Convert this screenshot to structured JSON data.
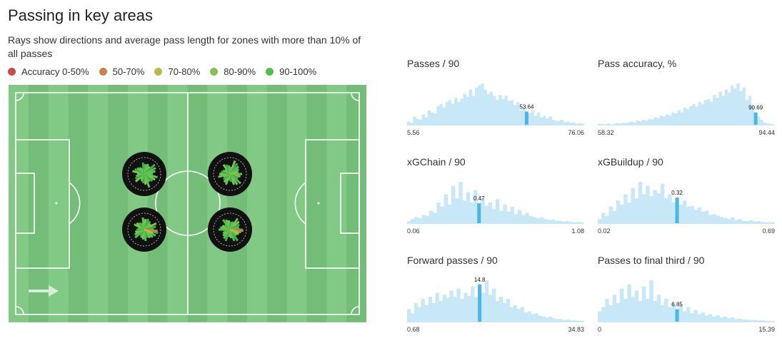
{
  "header": {
    "title": "Passing in key areas",
    "subtitle": "Rays show directions and average pass length for zones with more than 10% of all passes"
  },
  "legend": [
    {
      "label": "Accuracy 0-50%",
      "color": "#c94b4b"
    },
    {
      "label": "50-70%",
      "color": "#c9834b"
    },
    {
      "label": "70-80%",
      "color": "#bdb84a"
    },
    {
      "label": "80-90%",
      "color": "#86bf4f"
    },
    {
      "label": "90-100%",
      "color": "#4cbf4c"
    }
  ],
  "pitch": {
    "grass_light": "#82c986",
    "grass_dark": "#74bd78",
    "line_color": "#ffffff",
    "arrow_color": "#d7eedb",
    "zone_color": "#111111",
    "zone_count": 4
  },
  "chart_data": [
    {
      "type": "bar",
      "title": "Passes / 90",
      "min_label": "5.56",
      "max_label": "76.06",
      "highlight_label": "53.64",
      "highlight_fraction": 0.68,
      "values": [
        0.08,
        0.05,
        0.2,
        0.15,
        0.12,
        0.25,
        0.18,
        0.35,
        0.3,
        0.28,
        0.45,
        0.5,
        0.42,
        0.55,
        0.6,
        0.5,
        0.65,
        0.55,
        0.62,
        0.75,
        0.68,
        0.85,
        0.7,
        0.9,
        0.95,
        1.0,
        0.85,
        0.75,
        0.8,
        0.7,
        0.6,
        0.72,
        0.62,
        0.7,
        0.58,
        0.6,
        0.48,
        0.55,
        0.35,
        0.42,
        0.32,
        0.28,
        0.35,
        0.22,
        0.3,
        0.18,
        0.22,
        0.15,
        0.2,
        0.12,
        0.1,
        0.1,
        0.12,
        0.06,
        0.08,
        0.05,
        0.06,
        0.03,
        0.04,
        0.03
      ]
    },
    {
      "type": "bar",
      "title": "Pass accuracy, %",
      "min_label": "58.32",
      "max_label": "94.44",
      "highlight_label": "90.69",
      "highlight_fraction": 0.9,
      "values": [
        0.02,
        0.02,
        0.0,
        0.03,
        0.0,
        0.02,
        0.04,
        0.03,
        0.05,
        0.04,
        0.06,
        0.08,
        0.05,
        0.1,
        0.08,
        0.12,
        0.1,
        0.14,
        0.13,
        0.18,
        0.16,
        0.22,
        0.2,
        0.25,
        0.22,
        0.3,
        0.28,
        0.35,
        0.3,
        0.42,
        0.38,
        0.45,
        0.5,
        0.44,
        0.55,
        0.5,
        0.6,
        0.62,
        0.56,
        0.72,
        0.65,
        0.8,
        0.7,
        0.85,
        0.78,
        0.95,
        0.88,
        1.0,
        0.82,
        0.9,
        0.6,
        0.7,
        0.45,
        0.3,
        0.2,
        0.12,
        0.06,
        0.03,
        0.02,
        0.01
      ]
    },
    {
      "type": "bar",
      "title": "xGChain / 90",
      "min_label": "0.06",
      "max_label": "1.08",
      "highlight_label": "0.47",
      "highlight_fraction": 0.4,
      "values": [
        0.05,
        0.1,
        0.15,
        0.12,
        0.2,
        0.18,
        0.3,
        0.25,
        0.5,
        0.4,
        0.7,
        0.45,
        0.9,
        0.6,
        1.0,
        0.55,
        0.75,
        0.5,
        0.8,
        0.48,
        0.6,
        0.42,
        0.5,
        0.35,
        0.58,
        0.3,
        0.45,
        0.28,
        0.4,
        0.22,
        0.32,
        0.2,
        0.25,
        0.18,
        0.15,
        0.12,
        0.14,
        0.1,
        0.08,
        0.09,
        0.06,
        0.05,
        0.04,
        0.05,
        0.03,
        0.02,
        0.03,
        0.02
      ]
    },
    {
      "type": "bar",
      "title": "xGBuildup / 90",
      "min_label": "0.02",
      "max_label": "0.69",
      "highlight_label": "0.32",
      "highlight_fraction": 0.45,
      "values": [
        0.1,
        0.25,
        0.18,
        0.4,
        0.3,
        0.55,
        0.45,
        0.7,
        0.5,
        0.85,
        0.6,
        1.0,
        0.7,
        0.9,
        0.65,
        0.8,
        0.72,
        0.95,
        0.6,
        0.7,
        0.5,
        0.62,
        0.45,
        0.55,
        0.4,
        0.42,
        0.32,
        0.38,
        0.28,
        0.3,
        0.2,
        0.22,
        0.18,
        0.15,
        0.12,
        0.1,
        0.14,
        0.08,
        0.1,
        0.06,
        0.05,
        0.07,
        0.04,
        0.05,
        0.03,
        0.02,
        0.03,
        0.02
      ]
    },
    {
      "type": "bar",
      "title": "Forward passes / 90",
      "min_label": "0.68",
      "max_label": "34.83",
      "highlight_label": "14.8",
      "highlight_fraction": 0.41,
      "values": [
        0.3,
        0.2,
        0.45,
        0.35,
        0.55,
        0.4,
        0.6,
        0.45,
        0.7,
        0.5,
        0.65,
        0.58,
        0.75,
        0.6,
        0.8,
        0.55,
        0.7,
        0.62,
        0.85,
        0.6,
        0.9,
        0.7,
        1.0,
        0.65,
        0.8,
        0.5,
        0.6,
        0.45,
        0.55,
        0.35,
        0.4,
        0.3,
        0.35,
        0.22,
        0.25,
        0.18,
        0.2,
        0.14,
        0.12,
        0.1,
        0.12,
        0.08,
        0.06,
        0.06,
        0.04,
        0.05,
        0.03,
        0.03,
        0.02,
        0.02
      ]
    },
    {
      "type": "bar",
      "title": "Passes to final third / 90",
      "min_label": "0",
      "max_label": "15.39",
      "highlight_label": "6.85",
      "highlight_fraction": 0.44,
      "values": [
        0.25,
        0.35,
        0.55,
        0.4,
        0.65,
        0.45,
        0.8,
        0.55,
        0.9,
        0.6,
        0.75,
        0.5,
        0.85,
        0.55,
        1.0,
        0.5,
        0.65,
        0.4,
        0.55,
        0.35,
        0.45,
        0.3,
        0.4,
        0.25,
        0.35,
        0.2,
        0.28,
        0.18,
        0.22,
        0.15,
        0.18,
        0.12,
        0.15,
        0.1,
        0.12,
        0.08,
        0.1,
        0.06,
        0.07,
        0.05,
        0.05,
        0.04,
        0.04,
        0.03,
        0.03,
        0.02,
        0.02,
        0.01
      ]
    }
  ],
  "hist_style": {
    "bar_color": "#c9e8f7",
    "highlight_color": "#4bb6e8",
    "baseline_color": "#c9e8f7"
  }
}
